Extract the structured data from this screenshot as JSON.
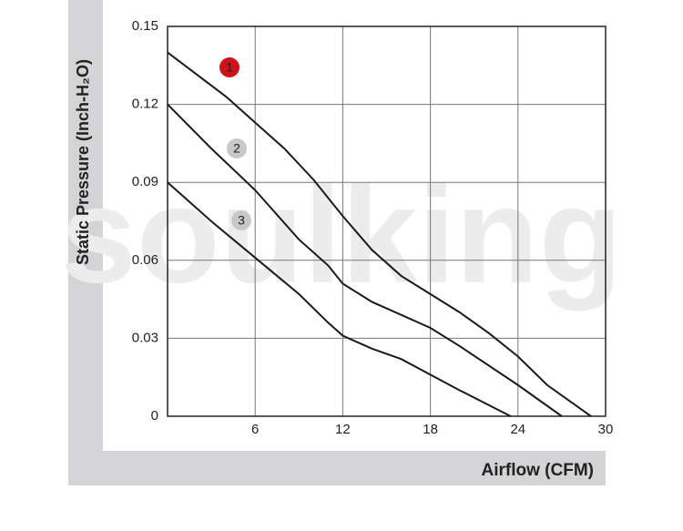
{
  "chart_data": {
    "type": "line",
    "watermark": "soulking",
    "x_label": "Airflow (CFM)",
    "y_label": "Static Pressure (Inch-H₂O)",
    "xlim": [
      0,
      30
    ],
    "xticks": [
      6,
      12,
      18,
      24,
      30
    ],
    "ylim": [
      0,
      0.15
    ],
    "yticks": [
      0,
      0.03,
      0.06,
      0.09,
      0.12,
      0.15
    ],
    "grid": true,
    "series": [
      {
        "name": "1",
        "color": "#1a1a1a",
        "badge_color": "#d0101a",
        "x": [
          0,
          4,
          6,
          8,
          10,
          12,
          14,
          16,
          18,
          20,
          22,
          24,
          26,
          28,
          29
        ],
        "values": [
          0.14,
          0.123,
          0.113,
          0.103,
          0.091,
          0.077,
          0.064,
          0.054,
          0.047,
          0.04,
          0.032,
          0.023,
          0.012,
          0.004,
          0
        ]
      },
      {
        "name": "2",
        "color": "#1a1a1a",
        "badge_color": "#c8c8c8",
        "x": [
          0,
          3,
          6,
          9,
          11,
          12,
          14,
          18,
          20,
          24,
          27
        ],
        "values": [
          0.12,
          0.103,
          0.087,
          0.068,
          0.058,
          0.051,
          0.044,
          0.034,
          0.027,
          0.012,
          0
        ]
      },
      {
        "name": "3",
        "color": "#1a1a1a",
        "badge_color": "#c8c8c8",
        "x": [
          0,
          3,
          6,
          9,
          11,
          12,
          14,
          16,
          18,
          20,
          23.5
        ],
        "values": [
          0.09,
          0.075,
          0.061,
          0.047,
          0.036,
          0.031,
          0.026,
          0.022,
          0.016,
          0.01,
          0
        ]
      }
    ]
  }
}
